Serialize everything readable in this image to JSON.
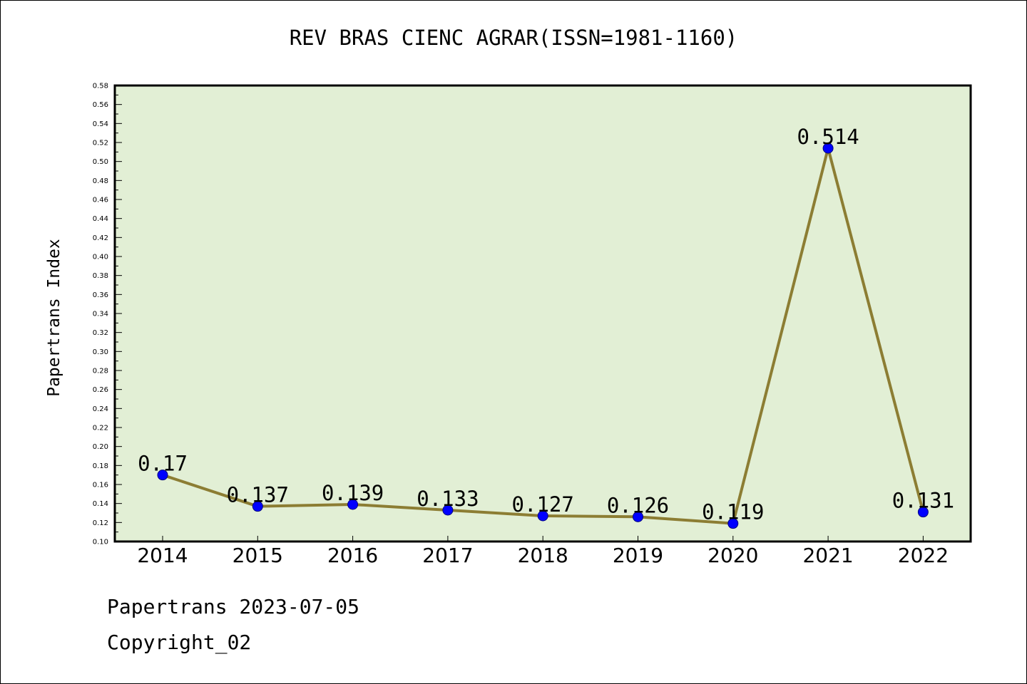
{
  "colors": {
    "plot_background": "#e2efd5",
    "line": "#8c7d33",
    "marker": "#0000ff",
    "axis": "#000000"
  },
  "footer": {
    "line1": "Papertrans 2023-07-05",
    "line2": "Copyright_02"
  },
  "chart_data": {
    "type": "line",
    "title": "REV BRAS CIENC AGRAR(ISSN=1981-1160)",
    "xlabel": "",
    "ylabel": "Papertrans Index",
    "ylim": [
      0.1,
      0.58
    ],
    "ytick_step": 0.02,
    "grid": false,
    "legend": "none",
    "x": [
      "2014",
      "2015",
      "2016",
      "2017",
      "2018",
      "2019",
      "2020",
      "2021",
      "2022"
    ],
    "values": [
      0.17,
      0.137,
      0.139,
      0.133,
      0.127,
      0.126,
      0.119,
      0.514,
      0.131
    ],
    "data_labels": [
      "0.17",
      "0.137",
      "0.139",
      "0.133",
      "0.127",
      "0.126",
      "0.119",
      "0.514",
      "0.131"
    ]
  }
}
